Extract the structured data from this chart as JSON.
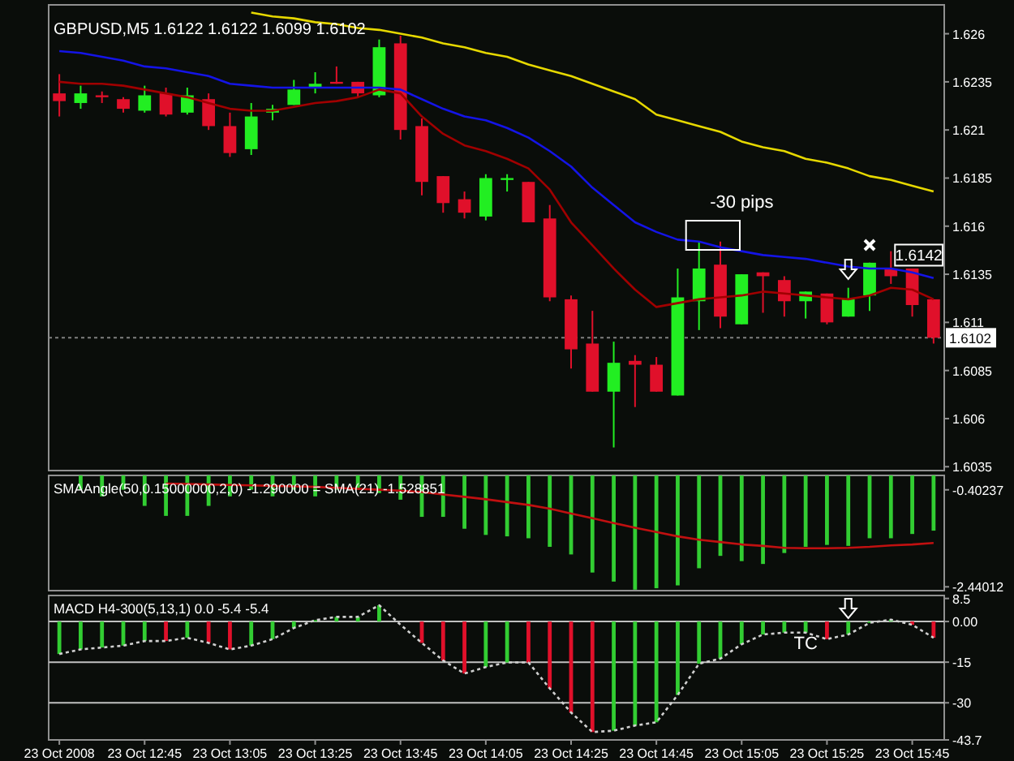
{
  "chart_data": [
    {
      "type": "candlestick",
      "title": "GBPUSD,M5  1.6122 1.6122 1.6099 1.6102",
      "tick_labels": "y",
      "ohlc": [
        [
          1.6229,
          1.6239,
          1.6217,
          1.6225
        ],
        [
          1.6224,
          1.6233,
          1.6221,
          1.6229
        ],
        [
          1.6228,
          1.623,
          1.6224,
          1.6227
        ],
        [
          1.6226,
          1.6227,
          1.6219,
          1.6221
        ],
        [
          1.622,
          1.6233,
          1.6219,
          1.6228
        ],
        [
          1.6229,
          1.6232,
          1.6217,
          1.6218
        ],
        [
          1.6219,
          1.6232,
          1.6218,
          1.6228
        ],
        [
          1.6226,
          1.6229,
          1.621,
          1.6212
        ],
        [
          1.6212,
          1.6219,
          1.6196,
          1.6198
        ],
        [
          1.62,
          1.6224,
          1.6197,
          1.6217
        ],
        [
          1.6219,
          1.6223,
          1.6215,
          1.6221
        ],
        [
          1.6223,
          1.6236,
          1.6223,
          1.6231
        ],
        [
          1.6232,
          1.624,
          1.6229,
          1.6234
        ],
        [
          1.6235,
          1.6243,
          1.6234,
          1.6234
        ],
        [
          1.6235,
          1.6235,
          1.6227,
          1.6229
        ],
        [
          1.6228,
          1.6257,
          1.6227,
          1.6253
        ],
        [
          1.6255,
          1.6259,
          1.6205,
          1.621
        ],
        [
          1.6212,
          1.6216,
          1.6176,
          1.6183
        ],
        [
          1.6186,
          1.6186,
          1.6167,
          1.6172
        ],
        [
          1.6174,
          1.6178,
          1.6164,
          1.6167
        ],
        [
          1.6165,
          1.6187,
          1.6163,
          1.6185
        ],
        [
          1.6184,
          1.6187,
          1.6178,
          1.6185
        ],
        [
          1.6183,
          1.6183,
          1.6162,
          1.6162
        ],
        [
          1.6164,
          1.6171,
          1.6121,
          1.6123
        ],
        [
          1.6122,
          1.6124,
          1.6086,
          1.6096
        ],
        [
          1.6099,
          1.6116,
          1.6074,
          1.6074
        ],
        [
          1.6074,
          1.61,
          1.6045,
          1.6089
        ],
        [
          1.609,
          1.6093,
          1.6066,
          1.6088
        ],
        [
          1.6088,
          1.6092,
          1.6074,
          1.6074
        ],
        [
          1.6072,
          1.6138,
          1.6072,
          1.6123
        ],
        [
          1.6121,
          1.6152,
          1.6106,
          1.6138
        ],
        [
          1.614,
          1.6152,
          1.6107,
          1.6113
        ],
        [
          1.6109,
          1.6135,
          1.6109,
          1.6135
        ],
        [
          1.6136,
          1.6136,
          1.6115,
          1.6134
        ],
        [
          1.6132,
          1.6134,
          1.6113,
          1.6121
        ],
        [
          1.6121,
          1.6126,
          1.6112,
          1.6126
        ],
        [
          1.6125,
          1.6125,
          1.6109,
          1.611
        ],
        [
          1.6113,
          1.6128,
          1.6113,
          1.6122
        ],
        [
          1.6124,
          1.6141,
          1.6116,
          1.6141
        ],
        [
          1.6138,
          1.6147,
          1.613,
          1.6134
        ],
        [
          1.6138,
          1.6138,
          1.6113,
          1.6119
        ],
        [
          1.6122,
          1.6122,
          1.6099,
          1.6102
        ]
      ],
      "colors": [
        "#e0102a",
        "#22ee22",
        "#e0102a",
        "#e0102a",
        "#22ee22",
        "#e0102a",
        "#22ee22",
        "#e0102a",
        "#e0102a",
        "#22ee22",
        "#22ee22",
        "#22ee22",
        "#22ee22",
        "#e0102a",
        "#e0102a",
        "#22ee22",
        "#e0102a",
        "#e0102a",
        "#e0102a",
        "#e0102a",
        "#22ee22",
        "#22ee22",
        "#e0102a",
        "#e0102a",
        "#e0102a",
        "#e0102a",
        "#22ee22",
        "#e0102a",
        "#e0102a",
        "#22ee22",
        "#22ee22",
        "#e0102a",
        "#22ee22",
        "#e0102a",
        "#e0102a",
        "#22ee22",
        "#e0102a",
        "#22ee22",
        "#22ee22",
        "#e0102a",
        "#e0102a",
        "#e0102a"
      ],
      "series": [
        {
          "type": "line",
          "color": "#e6d800",
          "values": [
            null,
            null,
            null,
            null,
            null,
            null,
            null,
            null,
            null,
            1.6271,
            1.6269,
            1.6268,
            1.6266,
            1.6265,
            1.6263,
            1.6262,
            1.626,
            1.6258,
            1.6255,
            1.6253,
            1.625,
            1.6248,
            1.6244,
            1.6241,
            1.6238,
            1.6234,
            1.623,
            1.6226,
            1.6218,
            1.6215,
            1.6212,
            1.6209,
            1.6204,
            1.6201,
            1.6199,
            1.6195,
            1.6193,
            1.619,
            1.6186,
            1.6184,
            1.6181,
            1.6178
          ]
        },
        {
          "type": "line",
          "color": "#1414e6",
          "values": [
            1.6251,
            1.625,
            1.6248,
            1.6246,
            1.6243,
            1.6242,
            1.624,
            1.6238,
            1.6234,
            1.6233,
            1.6232,
            1.6232,
            1.6232,
            1.6232,
            1.6232,
            1.6232,
            1.6231,
            1.6226,
            1.6221,
            1.6217,
            1.6215,
            1.6211,
            1.6206,
            1.6199,
            1.6191,
            1.618,
            1.6171,
            1.6162,
            1.6157,
            1.6153,
            1.6152,
            1.6149,
            1.6147,
            1.6145,
            1.6144,
            1.6143,
            1.6141,
            1.6139,
            1.6138,
            1.6138,
            1.6136,
            1.6133
          ]
        },
        {
          "type": "line",
          "color": "#a00000",
          "values": [
            1.6235,
            1.6234,
            1.6234,
            1.6233,
            1.6231,
            1.6229,
            1.6227,
            1.6224,
            1.6221,
            1.622,
            1.622,
            1.6222,
            1.6224,
            1.6225,
            1.6227,
            1.6231,
            1.6229,
            1.6217,
            1.6208,
            1.6202,
            1.6199,
            1.6195,
            1.619,
            1.6179,
            1.6162,
            1.615,
            1.6138,
            1.6127,
            1.6118,
            1.612,
            1.6122,
            1.6123,
            1.6124,
            1.6126,
            1.6125,
            1.6124,
            1.6123,
            1.6122,
            1.6124,
            1.6128,
            1.6127,
            1.6122
          ]
        }
      ],
      "ylim": [
        1.6033,
        1.6275
      ],
      "yticks": [
        1.6035,
        1.606,
        1.6085,
        1.611,
        1.6135,
        1.616,
        1.6185,
        1.621,
        1.6235,
        1.626
      ],
      "ref_lines": [
        {
          "axis": "y",
          "value": 1.6102,
          "label": "1.6102",
          "color": "#808080",
          "line_style": "dotted"
        }
      ],
      "annotations": [
        "-30 pips",
        {
          "text": "1.6142",
          "y": 1.6142
        }
      ]
    },
    {
      "type": "bar",
      "title": "SMAAngle(50,0.15000000,2,0) -1.290000 = SMA(21) -1.528851",
      "tick_labels": "y",
      "series": [
        {
          "type": "bar",
          "color": "#32cd32",
          "values": [
            null,
            -0.4,
            -0.54,
            -0.4,
            -0.74,
            -0.95,
            -0.95,
            -0.74,
            -0.54,
            -0.4,
            -0.54,
            -0.4,
            -0.54,
            -0.4,
            -0.4,
            -0.47,
            -0.61,
            -0.97,
            -0.97,
            -1.22,
            -1.35,
            -1.38,
            -1.42,
            -1.6,
            -1.76,
            -2.14,
            -2.33,
            -2.5,
            -2.47,
            -2.41,
            -2.05,
            -1.79,
            -1.9,
            -1.96,
            -1.73,
            -1.6,
            -1.56,
            -1.58,
            -1.42,
            -1.42,
            -1.33,
            -1.26
          ]
        },
        {
          "type": "line",
          "color": "#c01010",
          "values": [
            null,
            null,
            null,
            null,
            null,
            -0.27,
            -0.28,
            -0.29,
            -0.3,
            -0.31,
            -0.32,
            -0.33,
            -0.34,
            -0.36,
            -0.38,
            -0.4,
            -0.42,
            -0.45,
            -0.5,
            -0.55,
            -0.6,
            -0.66,
            -0.72,
            -0.8,
            -0.9,
            -1.0,
            -1.1,
            -1.2,
            -1.29,
            -1.38,
            -1.45,
            -1.5,
            -1.55,
            -1.58,
            -1.62,
            -1.63,
            -1.63,
            -1.62,
            -1.6,
            -1.57,
            -1.55,
            -1.52
          ]
        }
      ],
      "ylim": [
        -2.52,
        -0.1
      ],
      "yticks": [
        -0.40237,
        -2.44012
      ]
    },
    {
      "type": "bar",
      "title": "MACD H4-300(5,13,1) 0.0 -5.4 -5.4",
      "categories": [
        "23 Oct 2008",
        null,
        null,
        null,
        "23 Oct 12:45",
        null,
        null,
        null,
        "23 Oct 13:05",
        null,
        null,
        null,
        "23 Oct 13:25",
        null,
        null,
        null,
        "23 Oct 13:45",
        null,
        null,
        null,
        "23 Oct 14:05",
        null,
        null,
        null,
        "23 Oct 14:25",
        null,
        null,
        null,
        "23 Oct 14:45",
        null,
        null,
        null,
        "23 Oct 15:05",
        null,
        null,
        null,
        "23 Oct 15:25",
        null,
        null,
        null,
        "23 Oct 15:45",
        null
      ],
      "series": [
        {
          "type": "bar",
          "colors": [
            "#32cd32",
            "#32cd32",
            "#32cd32",
            "#32cd32",
            "#32cd32",
            "#e0102a",
            "#32cd32",
            "#e0102a",
            "#e0102a",
            "#32cd32",
            "#32cd32",
            "#32cd32",
            "#32cd32",
            "#32cd32",
            "#32cd32",
            "#32cd32",
            "#32cd32",
            "#e0102a",
            "#e0102a",
            "#e0102a",
            "#32cd32",
            "#32cd32",
            "#e0102a",
            "#e0102a",
            "#e0102a",
            "#e0102a",
            "#32cd32",
            "#32cd32",
            "#32cd32",
            "#32cd32",
            "#32cd32",
            "#32cd32",
            "#32cd32",
            "#32cd32",
            "#32cd32",
            "#32cd32",
            "#e0102a",
            "#32cd32",
            "#32cd32",
            "#32cd32",
            "#e0102a",
            "#e0102a"
          ],
          "values": [
            -12.0,
            -10.3,
            -9.6,
            -8.9,
            -7.2,
            -7.2,
            -6.0,
            -7.9,
            -10.3,
            -8.9,
            -6.5,
            -2.4,
            0.5,
            1.7,
            1.7,
            6.0,
            null,
            -7.9,
            -14.4,
            -19.2,
            -16.8,
            -15.1,
            -15.1,
            -24.7,
            -33.6,
            -40.8,
            -40.3,
            -38.4,
            -37.2,
            -27.1,
            -15.6,
            -13.7,
            -8.4,
            -4.8,
            -4.1,
            -4.1,
            -6.5,
            -4.8,
            -0.5,
            0.7,
            -1.2,
            -6.0
          ]
        },
        {
          "type": "line",
          "color": "#d0d0d0",
          "line_style": "dotted",
          "values": [
            -12.0,
            -10.3,
            -9.6,
            -8.9,
            -7.2,
            -7.2,
            -6.0,
            -7.9,
            -10.3,
            -8.9,
            -6.5,
            -2.4,
            0.5,
            1.7,
            1.7,
            6.0,
            -1.2,
            -7.9,
            -14.4,
            -19.2,
            -16.8,
            -15.1,
            -15.1,
            -24.7,
            -33.6,
            -40.8,
            -40.3,
            -38.4,
            -37.2,
            -27.1,
            -15.6,
            -13.7,
            -8.4,
            -4.8,
            -4.1,
            -4.1,
            -6.5,
            -4.8,
            -0.5,
            0.7,
            -1.2,
            -6.0
          ]
        }
      ],
      "ylim": [
        -43.7,
        9.6
      ],
      "yticks": [
        8.5,
        {
          "value": 0,
          "label": "0.00"
        },
        -15,
        -30,
        -43.7
      ],
      "ref_lines": [
        {
          "axis": "y",
          "value": 0,
          "color": "#c0c0c0"
        },
        {
          "axis": "y",
          "value": -15,
          "color": "#c0c0c0"
        },
        {
          "axis": "y",
          "value": -30,
          "color": "#c0c0c0"
        }
      ],
      "annotations": [
        "TC"
      ]
    }
  ]
}
